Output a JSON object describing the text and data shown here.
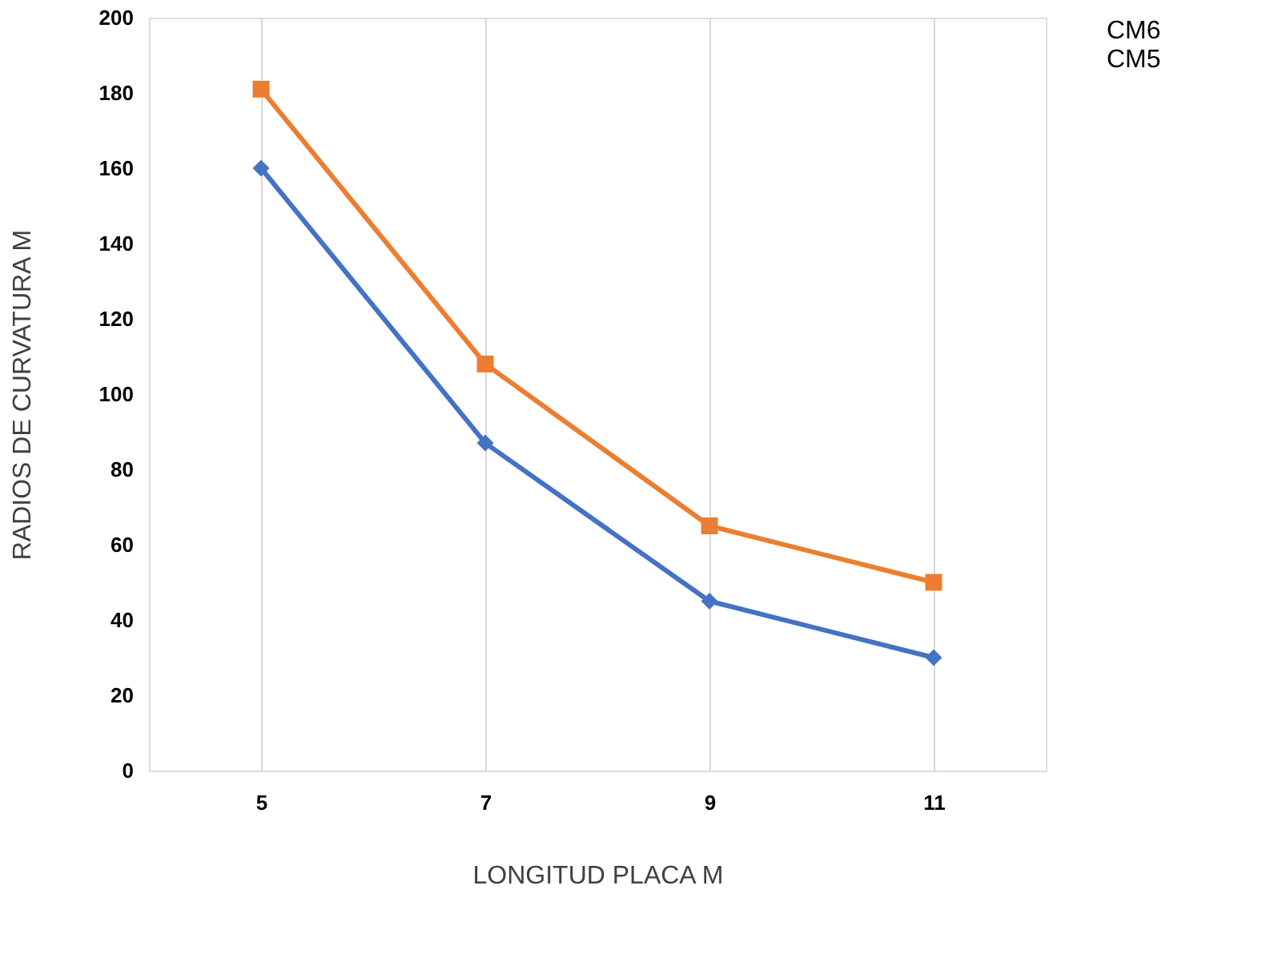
{
  "chart_data": {
    "type": "line",
    "xlabel": "LONGITUD PLACA M",
    "ylabel": "RADIOS DE CURVATURA M",
    "categories": [
      "5",
      "7",
      "9",
      "11"
    ],
    "series": [
      {
        "name": "CM6",
        "color": "#ed7d31",
        "marker": "square",
        "values": [
          181,
          108,
          65,
          50
        ]
      },
      {
        "name": "CM5",
        "color": "#4472c4",
        "marker": "diamond",
        "values": [
          160,
          87,
          45,
          30
        ]
      }
    ],
    "ylim": [
      0,
      200
    ],
    "yticks": [
      0,
      20,
      40,
      60,
      80,
      100,
      120,
      140,
      160,
      180,
      200
    ],
    "grid": "x",
    "legend": "right"
  }
}
